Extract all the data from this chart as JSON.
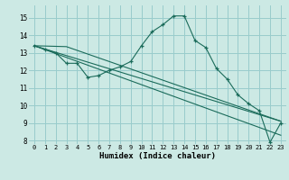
{
  "title": "",
  "xlabel": "Humidex (Indice chaleur)",
  "xlim": [
    -0.5,
    23.5
  ],
  "ylim": [
    7.8,
    15.7
  ],
  "yticks": [
    8,
    9,
    10,
    11,
    12,
    13,
    14,
    15
  ],
  "xticks": [
    0,
    1,
    2,
    3,
    4,
    5,
    6,
    7,
    8,
    9,
    10,
    11,
    12,
    13,
    14,
    15,
    16,
    17,
    18,
    19,
    20,
    21,
    22,
    23
  ],
  "background_color": "#cce9e4",
  "grid_color": "#99cccc",
  "line_color": "#1a6b5a",
  "series1_x": [
    0,
    1,
    2,
    3,
    4,
    5,
    6,
    7,
    8,
    9,
    10,
    11,
    12,
    13,
    14,
    15,
    16,
    17,
    18,
    19,
    20,
    21,
    22,
    23
  ],
  "series1_y": [
    13.4,
    13.2,
    13.0,
    12.4,
    12.4,
    11.6,
    11.7,
    12.0,
    12.2,
    12.5,
    13.4,
    14.2,
    14.6,
    15.1,
    15.1,
    13.7,
    13.3,
    12.1,
    11.5,
    10.6,
    10.1,
    9.7,
    7.9,
    9.0
  ],
  "series2_x": [
    0,
    23
  ],
  "series2_y": [
    13.4,
    9.1
  ],
  "series3_x": [
    0,
    3,
    23
  ],
  "series3_y": [
    13.4,
    13.35,
    9.1
  ],
  "series4_x": [
    0,
    23
  ],
  "series4_y": [
    13.4,
    8.3
  ]
}
